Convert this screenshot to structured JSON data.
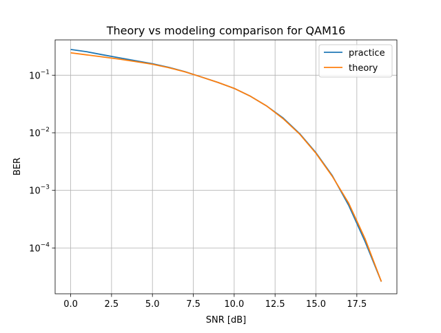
{
  "chart_data": {
    "type": "line",
    "title": "Theory vs modeling comparison for QAM16",
    "xlabel": "SNR [dB]",
    "ylabel": "BER",
    "xlim": [
      -0.95,
      19.95
    ],
    "ylim": [
      1.6e-05,
      0.41
    ],
    "yscale": "log",
    "grid": true,
    "legend_position": "top-right",
    "x_ticks": [
      {
        "value": 0,
        "label": "0.0"
      },
      {
        "value": 2.5,
        "label": "2.5"
      },
      {
        "value": 5,
        "label": "5.0"
      },
      {
        "value": 7.5,
        "label": "7.5"
      },
      {
        "value": 10,
        "label": "10.0"
      },
      {
        "value": 12.5,
        "label": "12.5"
      },
      {
        "value": 15,
        "label": "15.0"
      },
      {
        "value": 17.5,
        "label": "17.5"
      }
    ],
    "y_ticks": [
      {
        "value": 0.1,
        "base": "10",
        "exp": "−1"
      },
      {
        "value": 0.01,
        "base": "10",
        "exp": "−2"
      },
      {
        "value": 0.001,
        "base": "10",
        "exp": "−3"
      },
      {
        "value": 0.0001,
        "base": "10",
        "exp": "−4"
      }
    ],
    "x": [
      0,
      1,
      2,
      3,
      4,
      5,
      6,
      7,
      8,
      9,
      10,
      11,
      12,
      13,
      14,
      15,
      16,
      17,
      18,
      19
    ],
    "series": [
      {
        "name": "practice",
        "color": "#1f77b4",
        "values": [
          0.28,
          0.255,
          0.225,
          0.2,
          0.178,
          0.158,
          0.137,
          0.115,
          0.093,
          0.075,
          0.059,
          0.043,
          0.029,
          0.018,
          0.0097,
          0.0045,
          0.0018,
          0.00055,
          0.00013,
          2.6e-05
        ]
      },
      {
        "name": "theory",
        "color": "#ff7f0e",
        "values": [
          0.245,
          0.225,
          0.207,
          0.19,
          0.172,
          0.155,
          0.135,
          0.114,
          0.093,
          0.075,
          0.059,
          0.043,
          0.029,
          0.0175,
          0.0095,
          0.0044,
          0.00175,
          0.0006,
          0.000145,
          2.6e-05
        ]
      }
    ]
  }
}
